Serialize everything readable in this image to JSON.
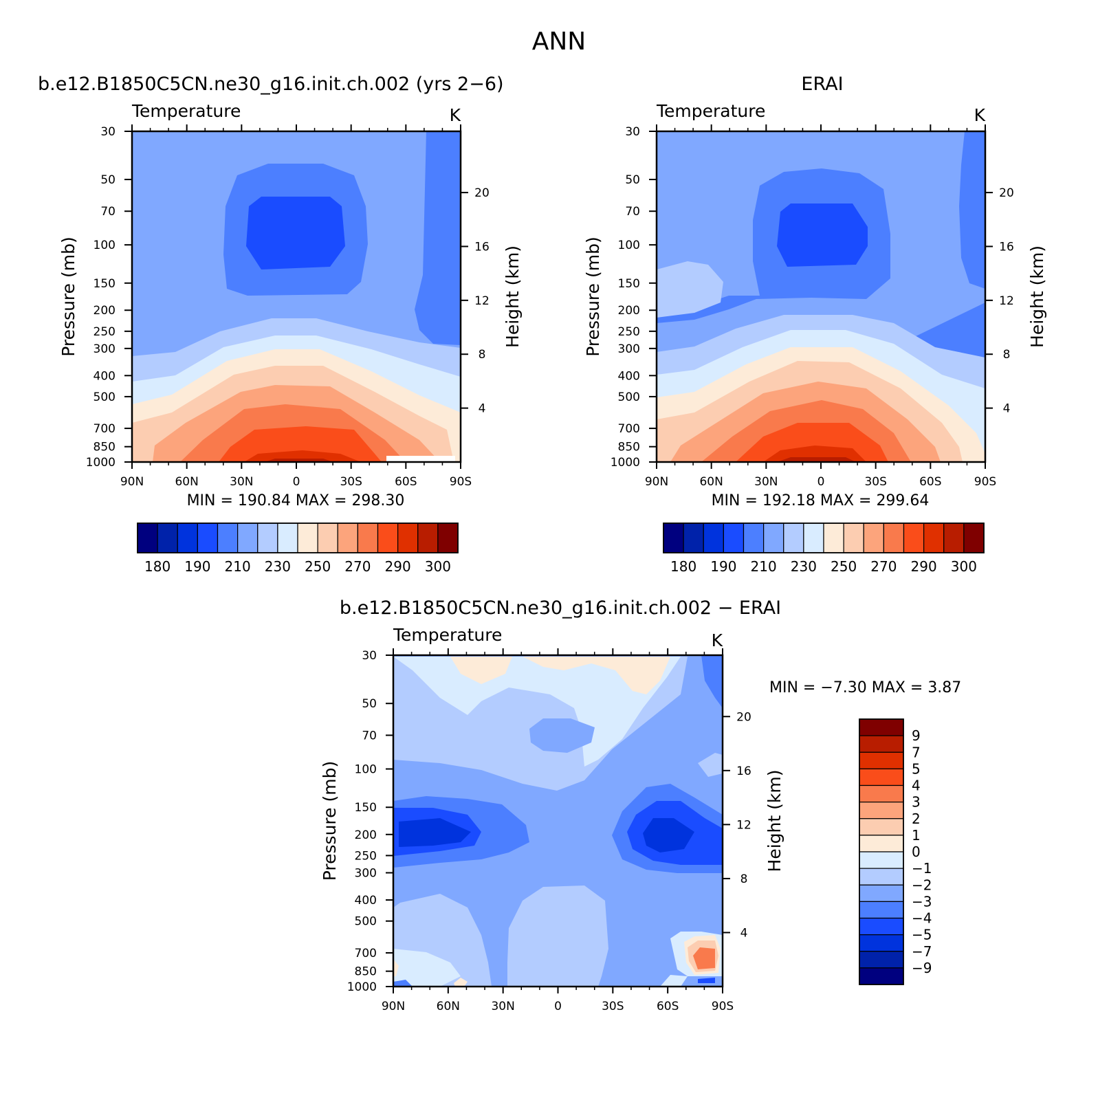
{
  "title": "ANN",
  "panels": [
    {
      "title": "b.e12.B1850C5CN.ne30_g16.init.ch.002 (yrs 2−6)",
      "variable": "Temperature",
      "units": "K",
      "ylabel": "Pressure (mb)",
      "y2label": "Height (km)",
      "min_label": "MIN",
      "min": "190.84",
      "max_label": "MAX",
      "max": "298.30"
    },
    {
      "title": "ERAI",
      "variable": "Temperature",
      "units": "K",
      "ylabel": "Pressure (mb)",
      "y2label": "Height (km)",
      "min_label": "MIN",
      "min": "192.18",
      "max_label": "MAX",
      "max": "299.64"
    },
    {
      "title": "b.e12.B1850C5CN.ne30_g16.init.ch.002 − ERAI",
      "variable": "Temperature",
      "units": "K",
      "ylabel": "Pressure (mb)",
      "y2label": "Height (km)",
      "min_label": "MIN",
      "min": "−7.30",
      "max_label": "MAX",
      "max": "3.87"
    }
  ],
  "chart_data": [
    {
      "type": "heatmap",
      "panel": "model",
      "x_ticks": [
        "90N",
        "60N",
        "30N",
        "0",
        "30S",
        "60S",
        "90S"
      ],
      "x_range_deg": [
        90,
        -90
      ],
      "y_ticks": [
        30,
        50,
        70,
        100,
        150,
        200,
        250,
        300,
        400,
        500,
        700,
        850,
        1000
      ],
      "y_range_mb": [
        1000,
        30
      ],
      "y2_ticks": [
        20,
        16,
        12,
        8,
        4
      ],
      "levels": [
        180,
        185,
        190,
        200,
        210,
        220,
        230,
        240,
        250,
        260,
        270,
        280,
        290,
        295,
        300
      ],
      "colorbar_labels": [
        "180",
        "190",
        "210",
        "230",
        "250",
        "270",
        "290",
        "300"
      ],
      "colors": [
        "#00007f",
        "#0022aa",
        "#0033dd",
        "#1a4cff",
        "#4c7fff",
        "#80a8ff",
        "#b3ccff",
        "#d9ecff",
        "#fdebd8",
        "#fccdb1",
        "#fca47c",
        "#f97a4c",
        "#fa4d1a",
        "#e03000",
        "#b81d00",
        "#7f0000"
      ],
      "min": 190.84,
      "max": 298.3
    },
    {
      "type": "heatmap",
      "panel": "obs",
      "x_ticks": [
        "90N",
        "60N",
        "30N",
        "0",
        "30S",
        "60S",
        "90S"
      ],
      "x_range_deg": [
        90,
        -90
      ],
      "y_ticks": [
        30,
        50,
        70,
        100,
        150,
        200,
        250,
        300,
        400,
        500,
        700,
        850,
        1000
      ],
      "y_range_mb": [
        1000,
        30
      ],
      "y2_ticks": [
        20,
        16,
        12,
        8,
        4
      ],
      "levels": [
        180,
        185,
        190,
        200,
        210,
        220,
        230,
        240,
        250,
        260,
        270,
        280,
        290,
        295,
        300
      ],
      "colorbar_labels": [
        "180",
        "190",
        "210",
        "230",
        "250",
        "270",
        "290",
        "300"
      ],
      "colors": [
        "#00007f",
        "#0022aa",
        "#0033dd",
        "#1a4cff",
        "#4c7fff",
        "#80a8ff",
        "#b3ccff",
        "#d9ecff",
        "#fdebd8",
        "#fccdb1",
        "#fca47c",
        "#f97a4c",
        "#fa4d1a",
        "#e03000",
        "#b81d00",
        "#7f0000"
      ],
      "min": 192.18,
      "max": 299.64
    },
    {
      "type": "heatmap",
      "panel": "difference",
      "x_ticks": [
        "90N",
        "60N",
        "30N",
        "0",
        "30S",
        "60S",
        "90S"
      ],
      "x_range_deg": [
        90,
        -90
      ],
      "y_ticks": [
        30,
        50,
        70,
        100,
        150,
        200,
        250,
        300,
        400,
        500,
        700,
        850,
        1000
      ],
      "y_range_mb": [
        1000,
        30
      ],
      "y2_ticks": [
        20,
        16,
        12,
        8,
        4
      ],
      "levels": [
        -9,
        -7,
        -5,
        -4,
        -3,
        -2,
        -1,
        0,
        1,
        2,
        3,
        4,
        5,
        7,
        9
      ],
      "colorbar_labels": [
        "9",
        "7",
        "5",
        "4",
        "3",
        "2",
        "1",
        "0",
        "−1",
        "−2",
        "−3",
        "−4",
        "−5",
        "−7",
        "−9"
      ],
      "colors": [
        "#00007f",
        "#0022aa",
        "#0033dd",
        "#1a4cff",
        "#4c7fff",
        "#80a8ff",
        "#b3ccff",
        "#d9ecff",
        "#fdebd8",
        "#fccdb1",
        "#fca47c",
        "#f97a4c",
        "#fa4d1a",
        "#e03000",
        "#b81d00",
        "#7f0000"
      ],
      "min": -7.3,
      "max": 3.87
    }
  ]
}
